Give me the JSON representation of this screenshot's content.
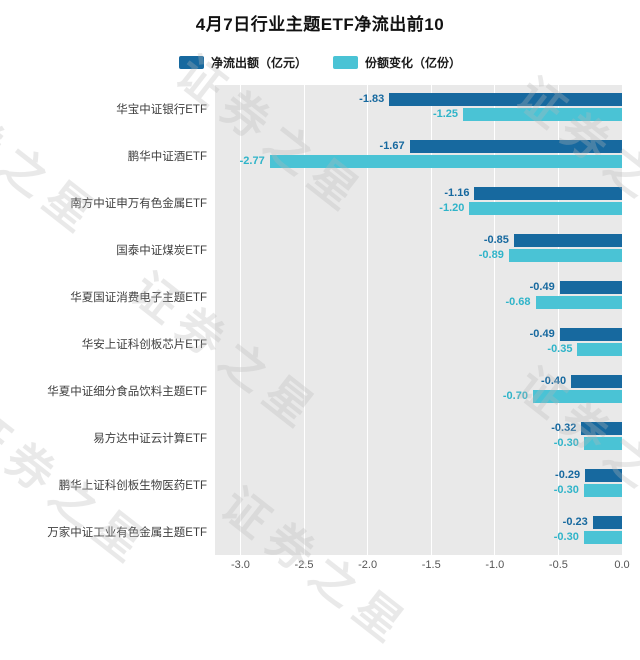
{
  "title": "4月7日行业主题ETF净流出前10",
  "watermark": "证券之星",
  "chart_data": {
    "type": "bar",
    "orientation": "horizontal",
    "title": "4月7日行业主题ETF净流出前10",
    "categories": [
      "华宝中证银行ETF",
      "鹏华中证酒ETF",
      "南方中证申万有色金属ETF",
      "国泰中证煤炭ETF",
      "华夏国证消费电子主题ETF",
      "华安上证科创板芯片ETF",
      "华夏中证细分食品饮料主题ETF",
      "易方达中证云计算ETF",
      "鹏华上证科创板生物医药ETF",
      "万家中证工业有色金属主题ETF"
    ],
    "series": [
      {
        "name": "净流出额（亿元）",
        "color": "#17699f",
        "label_color": "#17699f",
        "values": [
          -1.83,
          -1.67,
          -1.16,
          -0.85,
          -0.49,
          -0.49,
          -0.4,
          -0.32,
          -0.29,
          -0.23
        ]
      },
      {
        "name": "份额变化（亿份）",
        "color": "#4ac3d5",
        "label_color": "#2fb4c9",
        "values": [
          -1.25,
          -2.77,
          -1.2,
          -0.89,
          -0.68,
          -0.35,
          -0.7,
          -0.3,
          -0.3,
          -0.3
        ]
      }
    ],
    "xticks": [
      -3.0,
      -2.5,
      -2.0,
      -1.5,
      -1.0,
      -0.5,
      0.0
    ],
    "xlim": [
      -3.2,
      0
    ],
    "grid": true,
    "legend_position": "top",
    "plot_background": "#e9e9e9"
  }
}
